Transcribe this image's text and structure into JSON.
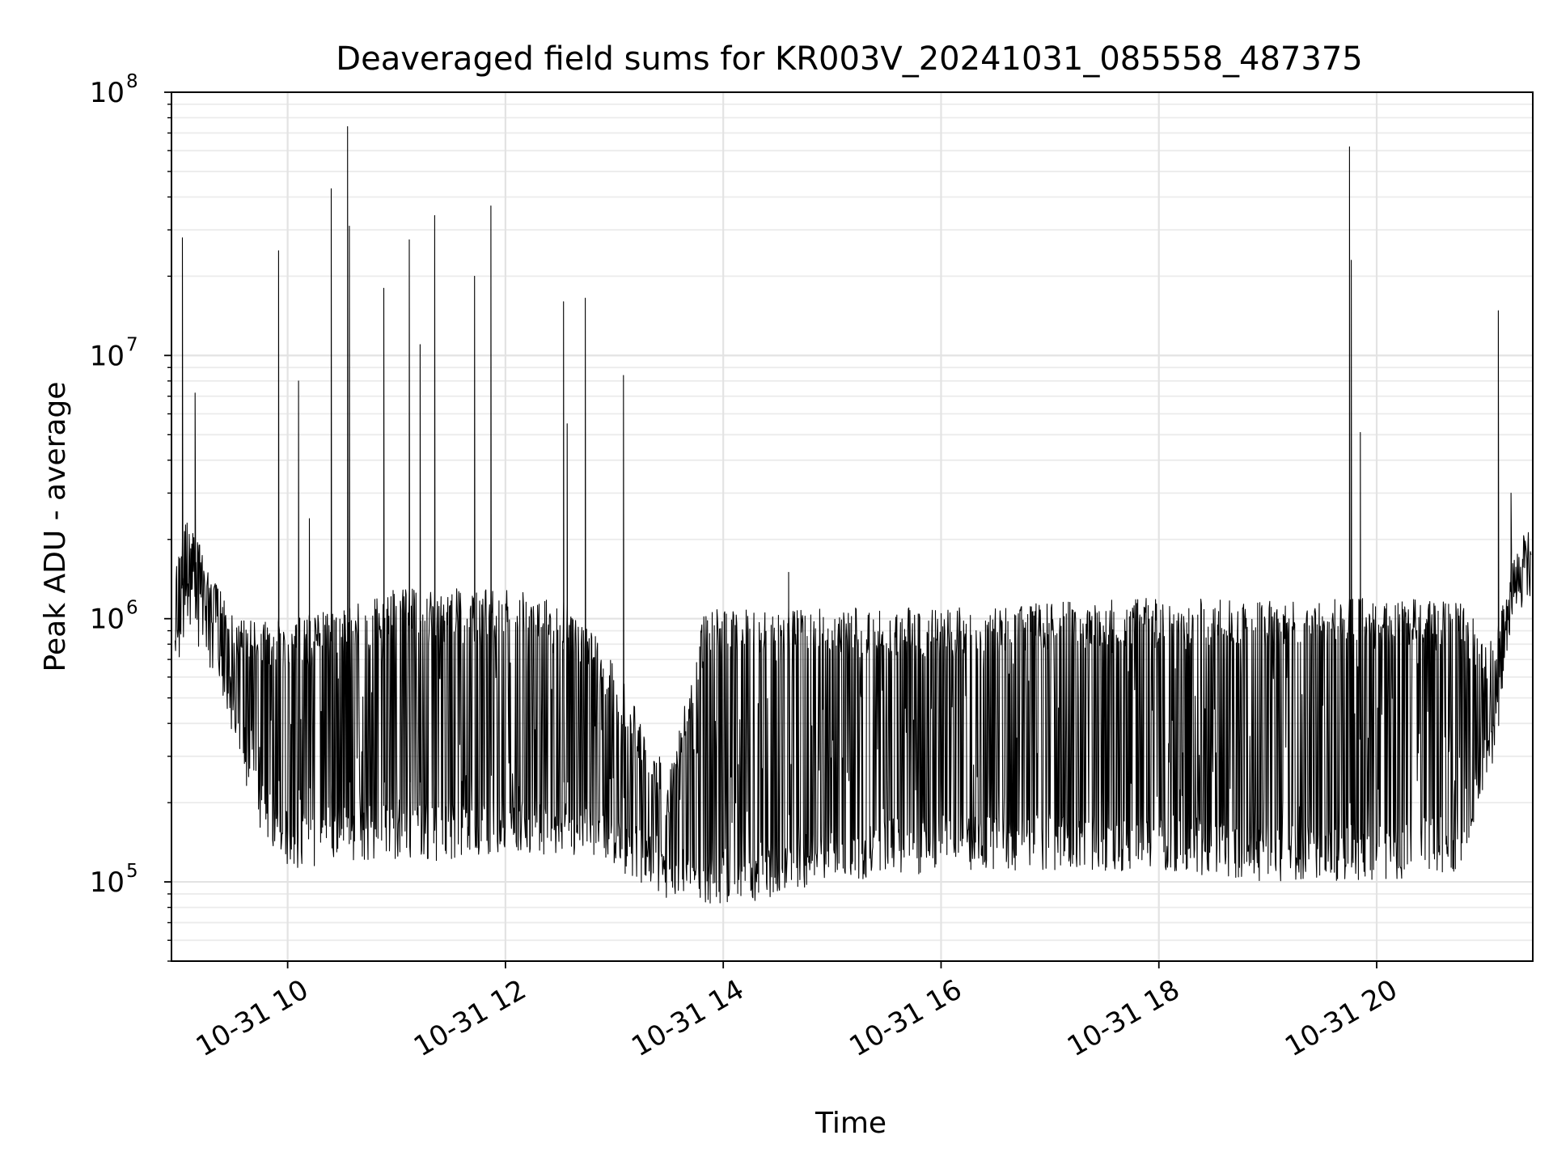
{
  "chart_data": {
    "type": "line",
    "title": "Deaveraged field sums for KR003V_20241031_085558_487375",
    "xlabel": "Time",
    "ylabel": "Peak ADU - average",
    "yscale": "log",
    "ylim": [
      50000,
      100000000
    ],
    "xlim": [
      "2024-10-31T08:56",
      "2024-10-31T21:26"
    ],
    "grid": true,
    "line_color": "#000000",
    "x_tick_labels": [
      "10-31 10",
      "10-31 12",
      "10-31 14",
      "10-31 16",
      "10-31 18",
      "10-31 20"
    ],
    "x_tick_times": [
      "2024-10-31T10:00",
      "2024-10-31T12:00",
      "2024-10-31T14:00",
      "2024-10-31T16:00",
      "2024-10-31T18:00",
      "2024-10-31T20:00"
    ],
    "y_tick_labels": [
      {
        "base": "10",
        "exp": "5",
        "value": 100000
      },
      {
        "base": "10",
        "exp": "6",
        "value": 1000000
      },
      {
        "base": "10",
        "exp": "7",
        "value": 10000000
      },
      {
        "base": "10",
        "exp": "8",
        "value": 100000000
      }
    ],
    "series": [
      {
        "envelope": [
          {
            "t": "2024-10-31T08:58",
            "low": 500000,
            "high": 1500000
          },
          {
            "t": "2024-10-31T09:05",
            "low": 900000,
            "high": 2500000
          },
          {
            "t": "2024-10-31T09:15",
            "low": 700000,
            "high": 1800000
          },
          {
            "t": "2024-10-31T09:30",
            "low": 350000,
            "high": 1000000
          },
          {
            "t": "2024-10-31T09:45",
            "low": 150000,
            "high": 1000000
          },
          {
            "t": "2024-10-31T10:00",
            "low": 110000,
            "high": 1000000
          },
          {
            "t": "2024-10-31T10:30",
            "low": 120000,
            "high": 1100000
          },
          {
            "t": "2024-10-31T11:00",
            "low": 120000,
            "high": 1300000
          },
          {
            "t": "2024-10-31T11:30",
            "low": 120000,
            "high": 1300000
          },
          {
            "t": "2024-10-31T12:00",
            "low": 130000,
            "high": 1300000
          },
          {
            "t": "2024-10-31T12:30",
            "low": 120000,
            "high": 1200000
          },
          {
            "t": "2024-10-31T12:50",
            "low": 120000,
            "high": 900000
          },
          {
            "t": "2024-10-31T13:10",
            "low": 100000,
            "high": 500000
          },
          {
            "t": "2024-10-31T13:30",
            "low": 85000,
            "high": 250000
          },
          {
            "t": "2024-10-31T13:50",
            "low": 82000,
            "high": 1100000
          },
          {
            "t": "2024-10-31T14:20",
            "low": 85000,
            "high": 1100000
          },
          {
            "t": "2024-10-31T14:50",
            "low": 95000,
            "high": 1100000
          },
          {
            "t": "2024-10-31T16:00",
            "low": 110000,
            "high": 1100000
          },
          {
            "t": "2024-10-31T17:00",
            "low": 110000,
            "high": 1150000
          },
          {
            "t": "2024-10-31T18:00",
            "low": 110000,
            "high": 1200000
          },
          {
            "t": "2024-10-31T19:00",
            "low": 100000,
            "high": 1200000
          },
          {
            "t": "2024-10-31T20:00",
            "low": 100000,
            "high": 1200000
          },
          {
            "t": "2024-10-31T20:45",
            "low": 110000,
            "high": 1200000
          },
          {
            "t": "2024-10-31T21:05",
            "low": 300000,
            "high": 800000
          },
          {
            "t": "2024-10-31T21:15",
            "low": 1000000,
            "high": 1700000
          },
          {
            "t": "2024-10-31T21:25",
            "low": 1100000,
            "high": 2500000
          }
        ],
        "spikes": [
          {
            "t": "2024-10-31T09:02",
            "value": 28000000
          },
          {
            "t": "2024-10-31T09:09",
            "value": 7200000
          },
          {
            "t": "2024-10-31T09:55",
            "value": 25000000
          },
          {
            "t": "2024-10-31T10:06",
            "value": 8000000
          },
          {
            "t": "2024-10-31T10:12",
            "value": 2400000
          },
          {
            "t": "2024-10-31T10:24",
            "value": 43000000
          },
          {
            "t": "2024-10-31T10:33",
            "value": 74000000
          },
          {
            "t": "2024-10-31T10:34",
            "value": 31000000
          },
          {
            "t": "2024-10-31T10:53",
            "value": 18000000
          },
          {
            "t": "2024-10-31T11:07",
            "value": 27500000
          },
          {
            "t": "2024-10-31T11:13",
            "value": 11000000
          },
          {
            "t": "2024-10-31T11:21",
            "value": 34000000
          },
          {
            "t": "2024-10-31T11:43",
            "value": 20000000
          },
          {
            "t": "2024-10-31T11:52",
            "value": 37000000
          },
          {
            "t": "2024-10-31T12:32",
            "value": 16000000
          },
          {
            "t": "2024-10-31T12:34",
            "value": 5500000
          },
          {
            "t": "2024-10-31T12:44",
            "value": 16500000
          },
          {
            "t": "2024-10-31T13:05",
            "value": 8400000
          },
          {
            "t": "2024-10-31T14:36",
            "value": 1500000
          },
          {
            "t": "2024-10-31T19:45",
            "value": 62000000
          },
          {
            "t": "2024-10-31T19:46",
            "value": 23000000
          },
          {
            "t": "2024-10-31T19:51",
            "value": 5100000
          },
          {
            "t": "2024-10-31T21:07",
            "value": 14800000
          },
          {
            "t": "2024-10-31T21:14",
            "value": 3000000
          }
        ]
      }
    ]
  }
}
